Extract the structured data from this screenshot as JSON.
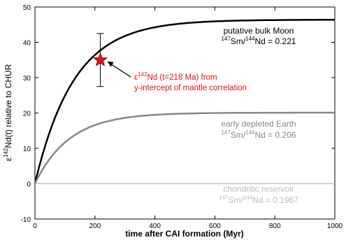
{
  "chart_data": {
    "type": "line",
    "xlabel": "time after CAI formation (Myr)",
    "ylabel_main": "ε",
    "ylabel_sup": "142",
    "ylabel_rest": "Nd(t) relative to CHUR",
    "xlim": [
      0,
      1000
    ],
    "ylim": [
      -10,
      50
    ],
    "x_ticks": [
      0,
      200,
      400,
      600,
      800,
      1000
    ],
    "y_ticks": [
      -10,
      0,
      10,
      20,
      30,
      40,
      50
    ],
    "grid": false,
    "series": [
      {
        "line1": "putative bulk Moon",
        "ratio_sup1": "147",
        "ratio_mid": "Sm/",
        "ratio_sup2": "144",
        "ratio_end": "Nd = 0.221",
        "color": "#000000",
        "x": [
          0,
          25,
          50,
          75,
          100,
          125,
          150,
          175,
          200,
          218,
          250,
          300,
          350,
          400,
          450,
          500,
          600,
          700,
          800,
          900,
          1000
        ],
        "y": [
          0,
          8.6,
          15.7,
          21.5,
          26.3,
          30.2,
          33.4,
          36.1,
          38.2,
          35.0,
          41.3,
          43.7,
          45.0,
          45.7,
          46.0,
          46.2,
          46.3,
          46.4,
          46.4,
          46.4,
          46.4
        ]
      },
      {
        "line1": "early depleted Earth",
        "ratio_sup1": "147",
        "ratio_mid": "Sm/",
        "ratio_sup2": "144",
        "ratio_end": "Nd = 0.206",
        "color": "#888888",
        "x": [
          0,
          25,
          50,
          75,
          100,
          150,
          200,
          250,
          300,
          400,
          500,
          600,
          800,
          1000
        ],
        "y": [
          0,
          4.1,
          7.5,
          10.3,
          12.5,
          15.6,
          17.5,
          18.6,
          19.2,
          19.8,
          20.0,
          20.1,
          20.1,
          20.1
        ]
      },
      {
        "line1": "chondritic reservoir",
        "ratio_sup1": "147",
        "ratio_mid": "Sm/",
        "ratio_sup2": "144",
        "ratio_end": "Nd = 0.1967",
        "color": "#bbbbbb",
        "x": [
          0,
          1000
        ],
        "y": [
          0,
          0
        ]
      }
    ],
    "marker": {
      "x": 218,
      "y": 35,
      "err_low": 27.5,
      "err_high": 42.5,
      "color": "#e0141e",
      "label_pre": "ε",
      "label_sup": "142",
      "label_line1": "Nd (t=218 Ma) from",
      "label_line2": "y-intercept of mantle correlation"
    }
  }
}
